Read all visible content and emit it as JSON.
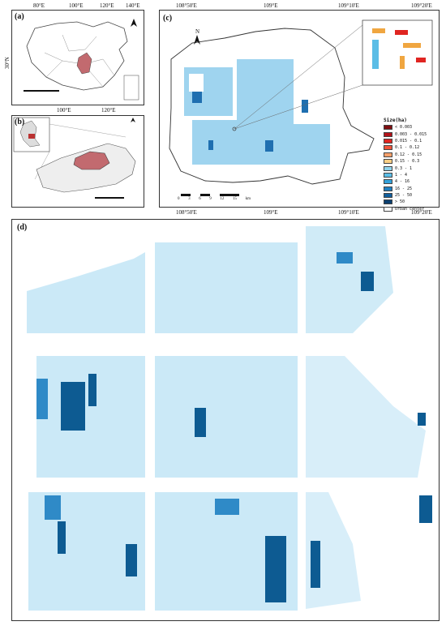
{
  "panels": {
    "a": {
      "label": "(a)",
      "lon_labels_top": [
        "80°E",
        "100°E",
        "120°E",
        "140°E"
      ],
      "lon_labels_bottom": [
        "100°E",
        "120°E"
      ],
      "lat_left": "30°N",
      "lat_right": [
        "30°N",
        "20°N"
      ]
    },
    "b": {
      "label": "(b)",
      "lat_right": "34°10'N"
    },
    "c": {
      "label": "(c)",
      "lon_top": [
        "108°50'E",
        "109°E",
        "109°10'E",
        "109°20'E"
      ],
      "lon_bottom": [
        "108°50'E",
        "109°E",
        "109°10'E",
        "109°20'E"
      ],
      "lat_right": [
        "34°20'N",
        "34°10'N"
      ],
      "north": "N",
      "scale_ticks": [
        "0",
        "3",
        "6",
        "9",
        "12",
        "15"
      ],
      "scale_unit": "km",
      "legend_title": "Size(ha)",
      "legend": [
        {
          "label": "< 0.003",
          "color": "#7f0f12"
        },
        {
          "label": "0.003 - 0.015",
          "color": "#b3131a"
        },
        {
          "label": "0.015 - 0.1",
          "color": "#e02521"
        },
        {
          "label": "0.1 - 0.12",
          "color": "#f0543a"
        },
        {
          "label": "0.12 - 0.15",
          "color": "#f7a06a"
        },
        {
          "label": "0.15 - 0.3",
          "color": "#fbcf86"
        },
        {
          "label": "0.3 - 1",
          "color": "#8fd3ec"
        },
        {
          "label": "1 - 4",
          "color": "#5bbde6"
        },
        {
          "label": "4 - 16",
          "color": "#34a2db"
        },
        {
          "label": "16 - 25",
          "color": "#1f7fc0"
        },
        {
          "label": "25 - 50",
          "color": "#125f9c"
        },
        {
          "label": "> 50",
          "color": "#0b3f70"
        },
        {
          "label": "Urban center",
          "color": "#ffffff"
        }
      ]
    },
    "d": {
      "label": "(d)"
    }
  }
}
